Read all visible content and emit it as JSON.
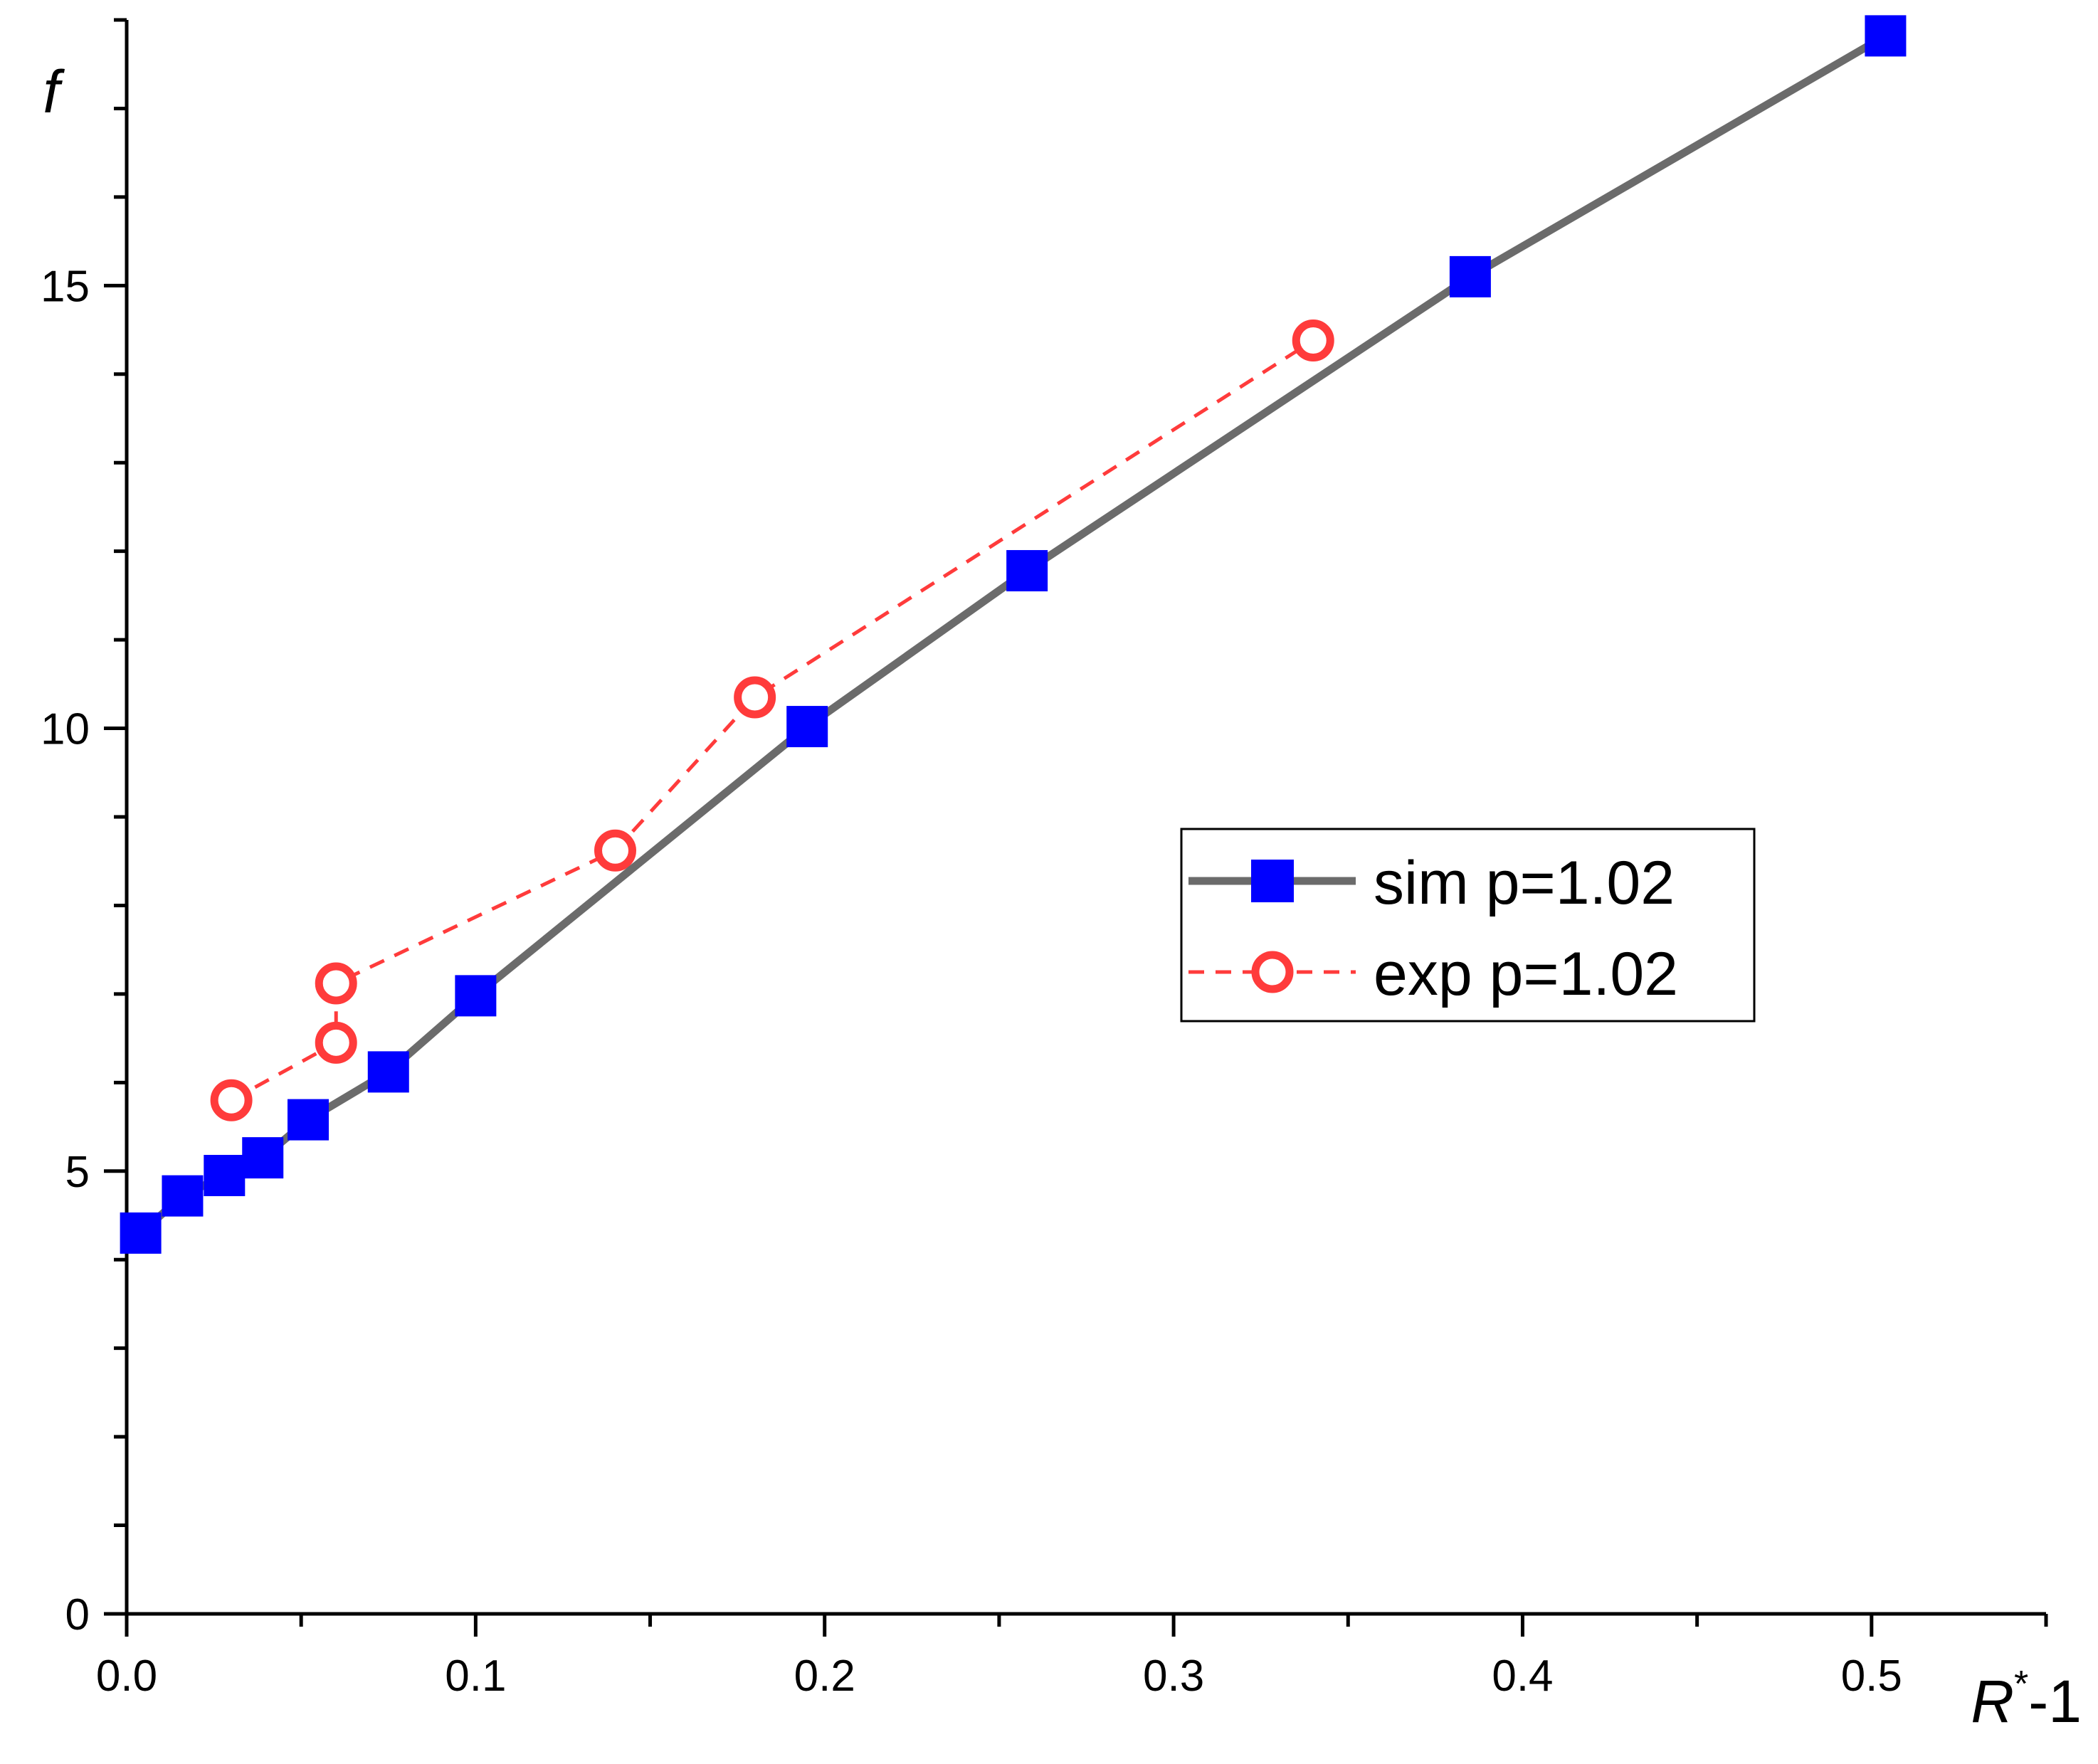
{
  "chart_data": {
    "type": "line",
    "title": "",
    "xlabel": {
      "main": "R",
      "superscript": "*",
      "suffix": "-1"
    },
    "ylabel": "f",
    "xlim": [
      0,
      0.55
    ],
    "ylim": [
      0,
      18
    ],
    "x_ticks": [
      {
        "value": 0.0,
        "label": "0.0"
      },
      {
        "value": 0.1,
        "label": "0.1"
      },
      {
        "value": 0.2,
        "label": "0.2"
      },
      {
        "value": 0.3,
        "label": "0.3"
      },
      {
        "value": 0.4,
        "label": "0.4"
      },
      {
        "value": 0.5,
        "label": "0.5"
      }
    ],
    "x_minor_ticks": [
      0.05,
      0.15,
      0.25,
      0.35,
      0.45,
      0.55
    ],
    "y_ticks": [
      {
        "value": 0,
        "label": "0"
      },
      {
        "value": 5,
        "label": "5"
      },
      {
        "value": 10,
        "label": "10"
      },
      {
        "value": 15,
        "label": "15"
      }
    ],
    "y_minor_ticks": [
      1,
      2,
      3,
      4,
      6,
      7,
      8,
      9,
      11,
      12,
      13,
      14,
      16,
      17,
      18
    ],
    "grid": false,
    "legend_position": "center-right",
    "series": [
      {
        "name": "sim p=1.02",
        "style": "solid",
        "marker": "filled-square",
        "line_color": "#6b6b6b",
        "marker_color": "#0000ff",
        "x": [
          0.004,
          0.016,
          0.028,
          0.039,
          0.052,
          0.075,
          0.1,
          0.195,
          0.258,
          0.385,
          0.504
        ],
        "y": [
          4.3,
          4.72,
          4.95,
          5.15,
          5.58,
          6.12,
          6.98,
          10.02,
          11.78,
          15.1,
          17.82
        ]
      },
      {
        "name": "exp p=1.02",
        "style": "dashed",
        "marker": "open-circle",
        "line_color": "#ff3b3b",
        "marker_color": "#ff3b3b",
        "x": [
          0.03,
          0.06,
          0.06,
          0.14,
          0.18,
          0.34
        ],
        "y": [
          5.8,
          6.45,
          7.12,
          8.62,
          10.35,
          14.38
        ]
      }
    ]
  }
}
